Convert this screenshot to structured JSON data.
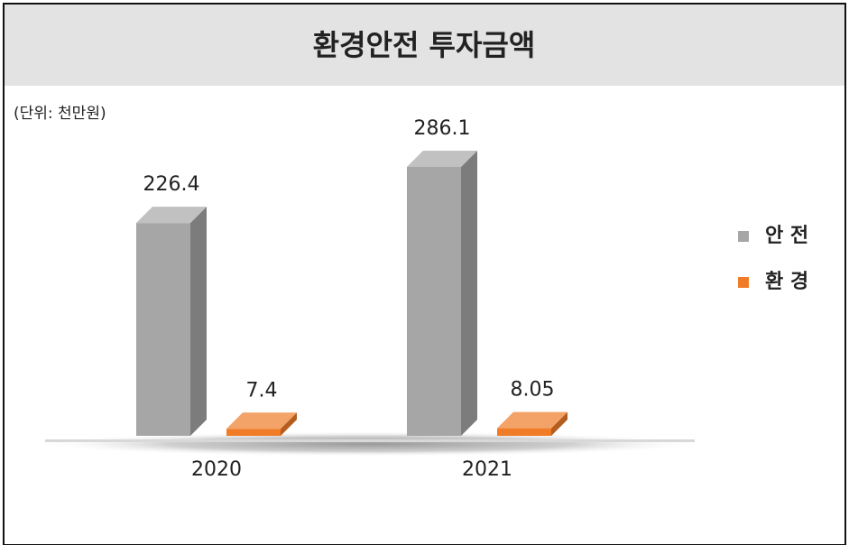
{
  "chart_data": {
    "type": "bar3d",
    "title": "환경안전 투자금액",
    "subtitle": "(단위: 천만원)",
    "categories": [
      "2020",
      "2021"
    ],
    "series": [
      {
        "name": "안 전",
        "color": "#a6a6a6",
        "values": [
          226.4,
          286.1
        ]
      },
      {
        "name": "환 경",
        "color": "#f07c28",
        "values": [
          7.4,
          8.05
        ]
      }
    ],
    "legend": "right"
  }
}
